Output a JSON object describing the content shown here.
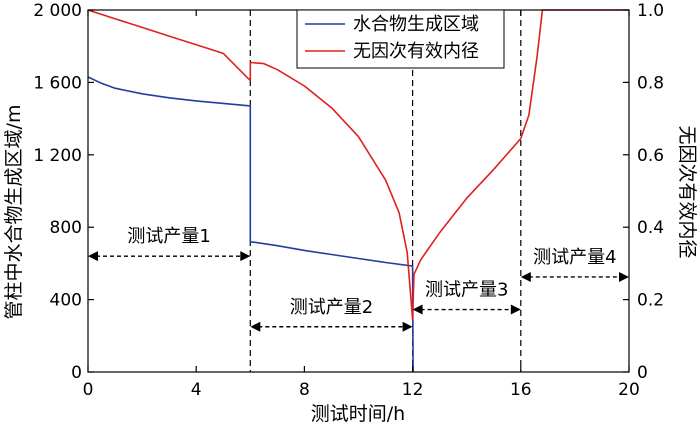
{
  "chart_data": {
    "type": "line",
    "xlabel": "测试时间/h",
    "ylabel_left": "管柱中水合物生成区域/m",
    "ylabel_right": "无因次有效内径",
    "xlim": [
      0,
      20
    ],
    "ylim_left": [
      0,
      2000
    ],
    "ylim_right": [
      0,
      1.0
    ],
    "x_ticks": [
      0,
      4,
      8,
      12,
      16,
      20
    ],
    "x_tick_labels": [
      "0",
      "4",
      "8",
      "12",
      "16",
      "20"
    ],
    "y_left_ticks": [
      0,
      400,
      800,
      1200,
      1600,
      2000
    ],
    "y_left_tick_labels": [
      "0",
      "400",
      "800",
      "1 200",
      "1 600",
      "2 000"
    ],
    "y_right_ticks": [
      0,
      0.2,
      0.4,
      0.6,
      0.8,
      1.0
    ],
    "y_right_tick_labels": [
      "0",
      "0.2",
      "0.4",
      "0.6",
      "0.8",
      "1.0"
    ],
    "legend": {
      "placement": "top-right"
    },
    "colors": {
      "series_blue": "#1f3f9e",
      "series_red": "#e02020"
    },
    "vlines": [
      6,
      12,
      16
    ],
    "segments": [
      {
        "label": "测试产量1",
        "x_start": 0,
        "x_end": 6,
        "y_left": 640
      },
      {
        "label": "测试产量2",
        "x_start": 6,
        "x_end": 12,
        "y_left": 250
      },
      {
        "label": "测试产量3",
        "x_start": 12,
        "x_end": 16,
        "y_left": 345
      },
      {
        "label": "测试产量4",
        "x_start": 16,
        "x_end": 20,
        "y_left": 525
      }
    ],
    "series": [
      {
        "name": "水合物生成区域",
        "axis": "left",
        "color": "#1f3f9e",
        "points": [
          [
            0,
            1630
          ],
          [
            0.5,
            1595
          ],
          [
            1,
            1568
          ],
          [
            2,
            1537
          ],
          [
            3,
            1515
          ],
          [
            4,
            1498
          ],
          [
            5,
            1484
          ],
          [
            6,
            1470
          ],
          [
            6.0,
            720
          ],
          [
            7,
            698
          ],
          [
            8,
            672
          ],
          [
            9,
            649
          ],
          [
            10,
            627
          ],
          [
            11,
            605
          ],
          [
            12,
            585
          ],
          [
            12.02,
            0
          ]
        ]
      },
      {
        "name": "无因次有效内径",
        "axis": "right",
        "color": "#e02020",
        "points": [
          [
            0,
            1.0
          ],
          [
            1,
            0.976
          ],
          [
            2,
            0.952
          ],
          [
            3,
            0.928
          ],
          [
            4,
            0.904
          ],
          [
            5,
            0.88
          ],
          [
            6,
            0.805
          ],
          [
            6.0,
            0.855
          ],
          [
            6.5,
            0.852
          ],
          [
            7,
            0.835
          ],
          [
            8,
            0.79
          ],
          [
            9,
            0.73
          ],
          [
            10,
            0.65
          ],
          [
            11,
            0.53
          ],
          [
            11.5,
            0.44
          ],
          [
            11.8,
            0.33
          ],
          [
            12,
            0.145
          ],
          [
            12.05,
            0.27
          ],
          [
            12.3,
            0.31
          ],
          [
            13,
            0.385
          ],
          [
            14,
            0.48
          ],
          [
            15,
            0.56
          ],
          [
            16,
            0.645
          ],
          [
            16.3,
            0.71
          ],
          [
            16.6,
            0.87
          ],
          [
            16.8,
            1.0
          ],
          [
            20,
            1.0
          ]
        ]
      }
    ]
  }
}
